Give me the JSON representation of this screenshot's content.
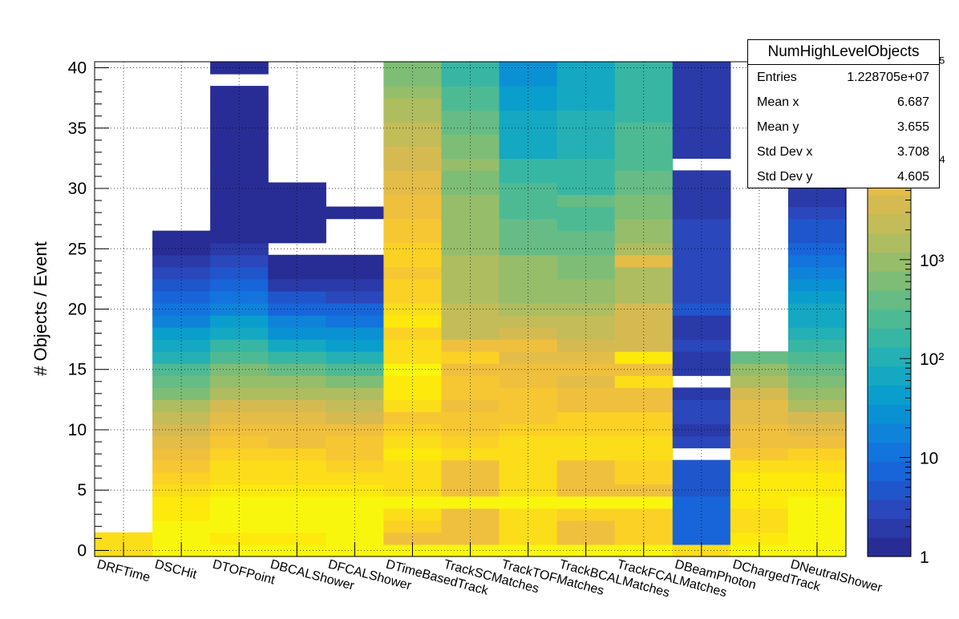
{
  "chart_data": {
    "type": "heatmap",
    "title": "",
    "xlabel": "",
    "ylabel": "# Objects / Event",
    "categories": [
      "DRFTime",
      "DSCHit",
      "DTOFPoint",
      "DBCALShower",
      "DFCALShower",
      "DTimeBasedTrack",
      "TrackSCMatches",
      "TrackTOFMatches",
      "TrackBCALMatches",
      "TrackFCALMatches",
      "DBeamPhoton",
      "DChargedTrack",
      "DNeutralShower"
    ],
    "ylim": [
      -0.5,
      40.5
    ],
    "y_ticks": [
      0,
      5,
      10,
      15,
      20,
      25,
      30,
      35,
      40
    ],
    "z_scale": "log",
    "z_range": [
      1,
      100000
    ],
    "z_ticks": [
      {
        "value": 1,
        "label": "1"
      },
      {
        "value": 10,
        "label": "10"
      },
      {
        "value": 100,
        "label": "10²"
      },
      {
        "value": 1000,
        "label": "10³"
      },
      {
        "value": 10000,
        "label": "10⁴"
      },
      {
        "value": 100000,
        "label": "10⁵"
      }
    ],
    "grid": true,
    "colormap": [
      "#282d96",
      "#2a3aa8",
      "#2a48bc",
      "#1f56cc",
      "#1865d9",
      "#1274dc",
      "#0f83da",
      "#0a91d4",
      "#0a9ecc",
      "#14a8c2",
      "#24b0b4",
      "#38b6a4",
      "#4eba94",
      "#66bc84",
      "#7ebd76",
      "#96bd6a",
      "#aebd60",
      "#c3bc58",
      "#d5ba52",
      "#e4bc48",
      "#efc03e",
      "#f7c733",
      "#fbd126",
      "#fcdd19",
      "#fde90c",
      "#f9f60e"
    ],
    "z_values": [
      [
        30000,
        30000,
        0,
        0,
        0,
        0,
        0,
        0,
        0,
        0,
        0,
        0,
        0,
        0,
        0,
        0,
        0,
        0,
        0,
        0,
        0,
        0,
        0,
        0,
        0,
        0,
        0,
        0,
        0,
        0,
        0,
        0,
        0,
        0,
        0,
        0,
        0,
        0,
        0,
        0,
        0
      ],
      [
        200000,
        120000,
        80000,
        60000,
        50000,
        35000,
        25000,
        16000,
        10000,
        6000,
        3500,
        2000,
        1200,
        700,
        400,
        230,
        130,
        70,
        40,
        22,
        12,
        7,
        4,
        3,
        2,
        1.5,
        1.2,
        0,
        0,
        0,
        0,
        0,
        0,
        0,
        0,
        0,
        0,
        0,
        0,
        0,
        0
      ],
      [
        100000,
        60000,
        70000,
        80000,
        70000,
        60000,
        40000,
        30000,
        22000,
        16000,
        8000,
        5000,
        3000,
        1500,
        1000,
        600,
        300,
        150,
        80,
        40,
        20,
        10,
        6,
        4,
        3,
        2,
        1.5,
        1.2,
        1,
        1,
        1,
        1,
        1.1,
        1.2,
        1,
        1,
        1,
        1.2,
        1.3,
        0,
        1
      ],
      [
        100000,
        60000,
        70000,
        80000,
        70000,
        60000,
        30000,
        30000,
        22000,
        10000,
        8000,
        5000,
        3000,
        1500,
        800,
        350,
        150,
        70,
        30,
        15,
        6,
        4,
        2,
        1.5,
        1,
        0,
        1.5,
        1.2,
        1,
        1,
        1,
        0,
        0,
        0,
        0,
        0,
        0,
        0,
        0,
        0,
        0
      ],
      [
        200000,
        100000,
        80000,
        90000,
        70000,
        50000,
        35000,
        20000,
        15000,
        12000,
        8000,
        4000,
        2500,
        1200,
        600,
        250,
        100,
        50,
        25,
        12,
        6,
        3,
        2,
        1.5,
        1,
        0,
        0,
        0,
        1,
        0,
        0,
        0,
        0,
        0,
        0,
        0,
        0,
        0,
        0,
        0,
        0
      ],
      [
        200000,
        10000,
        20000,
        30000,
        80000,
        30000,
        30000,
        30000,
        50000,
        30000,
        22000,
        15000,
        30000,
        50000,
        60000,
        80000,
        40000,
        30000,
        22000,
        60000,
        30000,
        22000,
        20000,
        15000,
        20000,
        20000,
        12000,
        11000,
        10000,
        9000,
        6000,
        5000,
        4000,
        3000,
        2500,
        2000,
        1500,
        1200,
        1000,
        700,
        500
      ],
      [
        200000,
        10000,
        10000,
        10000,
        80000,
        10000,
        10000,
        10000,
        30000,
        22000,
        15000,
        15000,
        10000,
        12000,
        15000,
        10000,
        22000,
        10000,
        2500,
        2000,
        2000,
        1200,
        1200,
        1200,
        1200,
        1000,
        1000,
        1000,
        1000,
        1000,
        700,
        700,
        800,
        600,
        600,
        400,
        400,
        300,
        300,
        200,
        200
      ],
      [
        200000,
        30000,
        30000,
        30000,
        80000,
        30000,
        30000,
        30000,
        30000,
        30000,
        20000,
        15000,
        15000,
        12000,
        10000,
        8000,
        5000,
        8000,
        3000,
        2500,
        1500,
        1000,
        1000,
        1000,
        1000,
        350,
        350,
        350,
        300,
        250,
        250,
        200,
        200,
        70,
        70,
        70,
        60,
        50,
        40,
        30,
        30
      ],
      [
        200000,
        10000,
        10000,
        20000,
        70000,
        10000,
        10000,
        10000,
        30000,
        30000,
        20000,
        20000,
        8000,
        8000,
        5000,
        8000,
        5000,
        3000,
        2000,
        2000,
        1500,
        1000,
        1000,
        600,
        500,
        350,
        350,
        300,
        300,
        350,
        200,
        200,
        150,
        100,
        100,
        100,
        100,
        70,
        60,
        60,
        60
      ],
      [
        200000,
        25000,
        22000,
        25000,
        70000,
        10000,
        22000,
        20000,
        30000,
        30000,
        20000,
        20000,
        10000,
        10000,
        40000,
        10000,
        50000,
        3000,
        3000,
        3000,
        3000,
        1500,
        1200,
        1500,
        6000,
        1500,
        800,
        800,
        500,
        500,
        350,
        350,
        300,
        250,
        250,
        250,
        200,
        200,
        200,
        150,
        150
      ],
      [
        30000,
        8,
        8,
        8,
        8,
        4,
        4,
        4,
        0,
        3,
        2,
        3,
        3,
        2,
        0,
        2,
        2,
        3,
        2,
        2,
        4,
        3,
        3,
        3,
        3,
        3,
        3,
        3,
        2,
        2,
        2,
        2,
        0,
        2,
        2,
        2,
        2,
        2,
        2,
        2,
        2
      ],
      [
        200000,
        50000,
        40000,
        40000,
        60000,
        50000,
        50000,
        30000,
        15000,
        10000,
        8000,
        6000,
        5000,
        3000,
        1500,
        800,
        400,
        0,
        0,
        0,
        0,
        0,
        0,
        0,
        0,
        0,
        0,
        0,
        0,
        0,
        0,
        0,
        0,
        0,
        0,
        0,
        0,
        0,
        0,
        0,
        0
      ],
      [
        200000,
        150000,
        120000,
        100000,
        80000,
        60000,
        50000,
        30000,
        18000,
        10000,
        6000,
        3000,
        1500,
        800,
        500,
        400,
        250,
        180,
        120,
        80,
        60,
        40,
        30,
        20,
        10,
        7,
        5,
        4,
        3,
        2,
        2,
        1.5,
        1.3,
        1.2,
        1.5,
        1.3,
        1.2,
        1.2,
        1.1,
        1,
        1
      ]
    ]
  },
  "stats": {
    "title": "NumHighLevelObjects",
    "rows": [
      {
        "label": "Entries",
        "value": "1.228705e+07"
      },
      {
        "label": "Mean x",
        "value": "6.687"
      },
      {
        "label": "Mean y",
        "value": "3.655"
      },
      {
        "label": "Std Dev x",
        "value": "3.708"
      },
      {
        "label": "Std Dev y",
        "value": "4.605"
      }
    ]
  }
}
